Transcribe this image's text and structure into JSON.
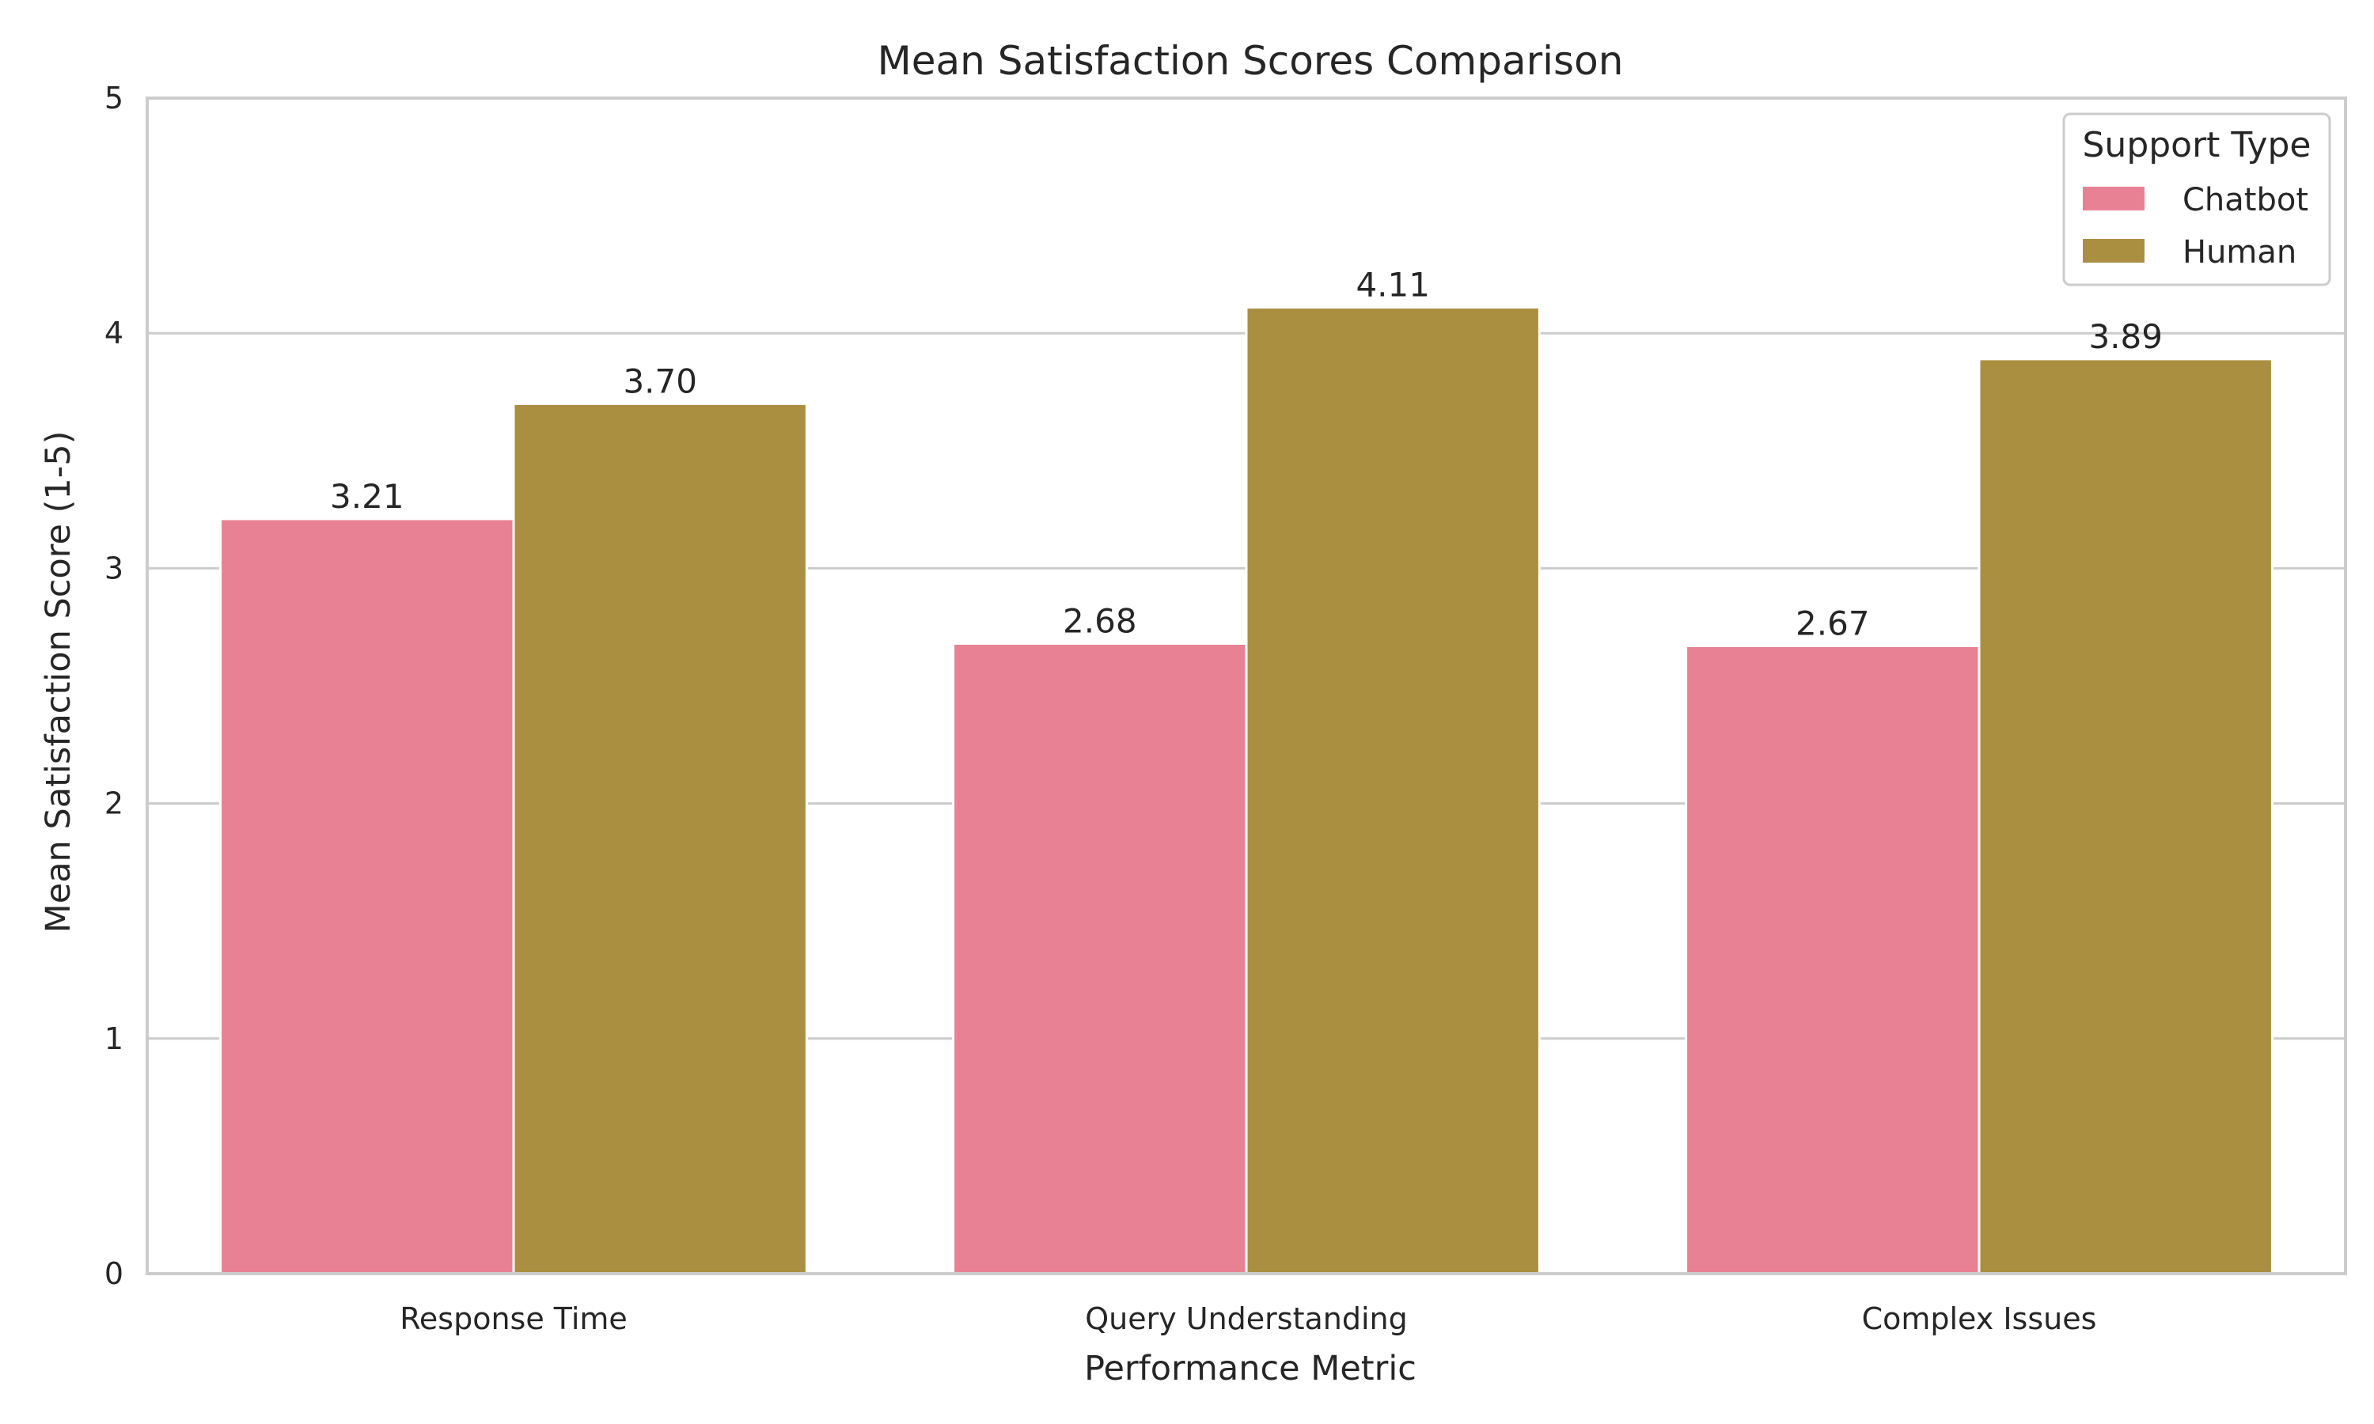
{
  "chart_data": {
    "type": "bar",
    "title": "Mean Satisfaction Scores Comparison",
    "xlabel": "Performance Metric",
    "ylabel": "Mean Satisfaction Score (1-5)",
    "categories": [
      "Response Time",
      "Query Understanding",
      "Complex Issues"
    ],
    "series": [
      {
        "name": "Chatbot",
        "color": "#e88193",
        "values": [
          3.21,
          2.68,
          2.67
        ],
        "labels": [
          "3.21",
          "2.68",
          "2.67"
        ]
      },
      {
        "name": "Human",
        "color": "#aa8f41",
        "values": [
          3.7,
          4.11,
          3.89
        ],
        "labels": [
          "3.70",
          "4.11",
          "3.89"
        ]
      }
    ],
    "ylim": [
      0,
      5
    ],
    "yticks": [
      0,
      1,
      2,
      3,
      4,
      5
    ],
    "grid": true,
    "legend": {
      "title": "Support Type",
      "position": "top-right"
    }
  }
}
